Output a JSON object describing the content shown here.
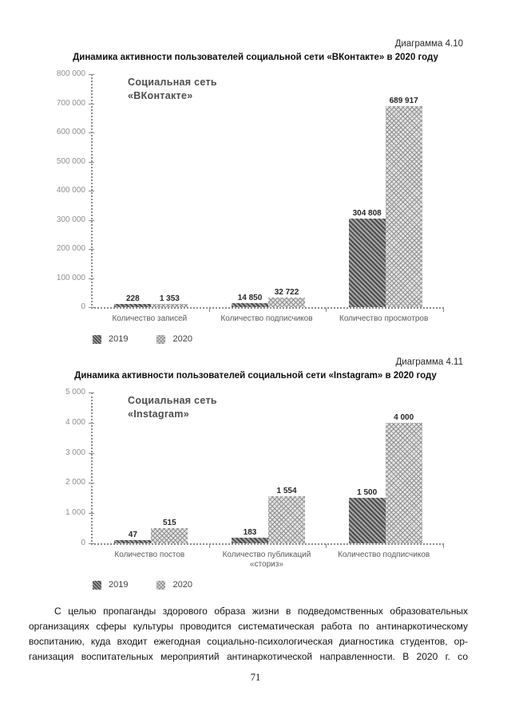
{
  "page": {
    "number": "71"
  },
  "chart_data": [
    {
      "type": "bar",
      "caption": "Диаграмма 4.10",
      "title": "Динамика активности пользователей социальной сети «ВКонтакте» в 2020 году",
      "inner_label": [
        "Социальная сеть",
        "«ВКонтакте»"
      ],
      "xlabel": "",
      "ylabel": "",
      "ylim": [
        0,
        800000
      ],
      "grid": false,
      "legend_position": "bottom-left",
      "ytick_labels": [
        "800 000",
        "700 000",
        "600 000",
        "500 000",
        "400 000",
        "300 000",
        "200 000",
        "100 000",
        "0"
      ],
      "categories": [
        "Количество записей",
        "Количество подписчиков",
        "Количество просмотров"
      ],
      "series": [
        {
          "name": "2019",
          "values": [
            228,
            14850,
            304808
          ],
          "labels": [
            "228",
            "14 850",
            "304 808"
          ]
        },
        {
          "name": "2020",
          "values": [
            1353,
            32722,
            689917
          ],
          "labels": [
            "1 353",
            "32 722",
            "689 917"
          ]
        }
      ]
    },
    {
      "type": "bar",
      "caption": "Диаграмма 4.11",
      "title": "Динамика активности пользователей социальной сети «Instagram» в 2020 году",
      "inner_label": [
        "Социальная сеть",
        "«Instagram»"
      ],
      "xlabel": "",
      "ylabel": "",
      "ylim": [
        0,
        5000
      ],
      "grid": false,
      "legend_position": "bottom-left",
      "ytick_labels": [
        "5 000",
        "4 000",
        "3 000",
        "2 000",
        "1 000",
        "0"
      ],
      "categories": [
        "Количество постов",
        "Количество публикаций «сториз»",
        "Количество подписчиков"
      ],
      "series": [
        {
          "name": "2019",
          "values": [
            47,
            183,
            1500
          ],
          "labels": [
            "47",
            "183",
            "1 500"
          ]
        },
        {
          "name": "2020",
          "values": [
            515,
            1554,
            4000
          ],
          "labels": [
            "515",
            "1 554",
            "4 000"
          ]
        }
      ]
    }
  ],
  "paragraph": {
    "lines": [
      "С целью пропаганды здорового образа жизни в подведомственных образовательных",
      "организациях сферы культуры проводится систематическая работа по антинаркотическому",
      "воспитанию, куда входит ежегодная социально-психологическая диагностика студентов, ор-",
      "ганизация воспитательных мероприятий антинаркотической направленности. В 2020 г. со"
    ]
  }
}
